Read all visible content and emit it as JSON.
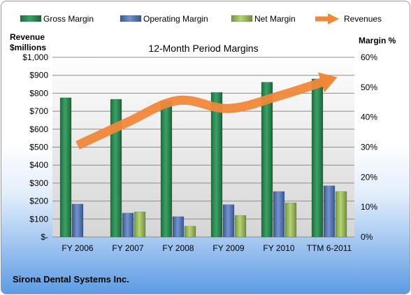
{
  "chart_data": {
    "type": "bar",
    "title": "12-Month Period Margins",
    "company": "Sirona Dental Systems Inc.",
    "y_left_label": [
      "Revenue",
      "$millions"
    ],
    "y_right_label": "Margin %",
    "categories": [
      "FY 2006",
      "FY 2007",
      "FY 2008",
      "FY 2009",
      "FY 2010",
      "TTM 6-2011"
    ],
    "y_left_ticks": [
      "$-",
      "$100",
      "$200",
      "$300",
      "$400",
      "$500",
      "$600",
      "$700",
      "$800",
      "$900",
      "$1,000"
    ],
    "y_right_ticks": [
      "0%",
      "10%",
      "20%",
      "30%",
      "40%",
      "50%",
      "60%"
    ],
    "ylim_left": [
      0,
      1000
    ],
    "ylim_right": [
      0,
      60
    ],
    "grid": true,
    "legend_position": "top",
    "series": [
      {
        "name": "Gross Margin",
        "axis": "right",
        "kind": "bar",
        "color": "#2e8b57",
        "values": [
          46.5,
          46,
          45.5,
          48.3,
          51.7,
          52.8
        ]
      },
      {
        "name": "Operating Margin",
        "axis": "right",
        "kind": "bar",
        "color": "#5878b4",
        "values": [
          11,
          8,
          6.8,
          10.8,
          15.2,
          17.1
        ]
      },
      {
        "name": "Net Margin",
        "axis": "right",
        "kind": "bar",
        "color": "#9bbb59",
        "values": [
          0,
          8.4,
          3.6,
          7.2,
          11.4,
          15.2
        ]
      },
      {
        "name": "Revenues",
        "axis": "left",
        "kind": "line",
        "color": "#f0883a",
        "values": [
          510,
          640,
          760,
          715,
          785,
          875
        ]
      }
    ]
  }
}
